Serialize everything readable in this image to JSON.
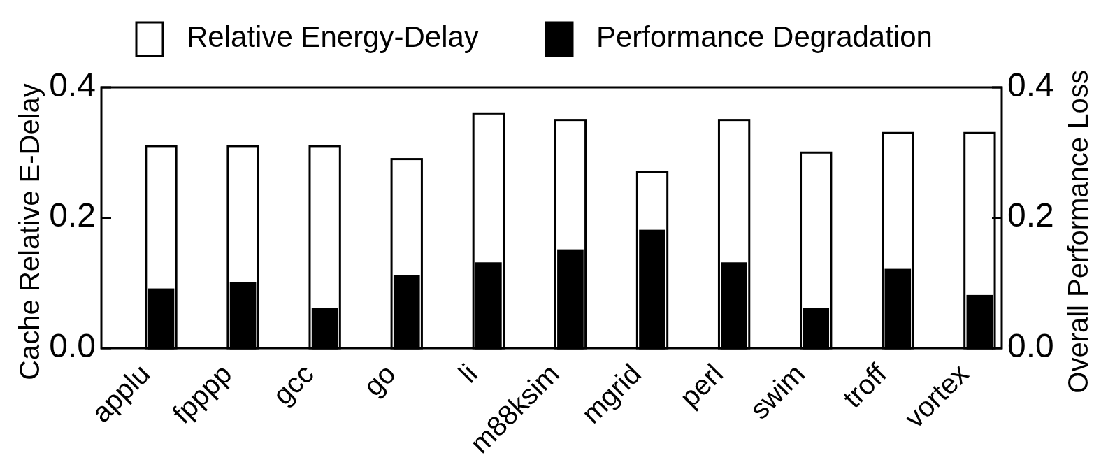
{
  "chart_data": {
    "type": "bar",
    "ylabel": "Cache Relative E-Delay",
    "y2label": "Overall Performance Loss",
    "categories": [
      "applu",
      "fpppp",
      "gcc",
      "go",
      "li",
      "m88ksim",
      "mgrid",
      "perl",
      "swim",
      "troff",
      "vortex"
    ],
    "series": [
      {
        "name": "Relative Energy-Delay",
        "color": "#ffffff",
        "values": [
          0.31,
          0.31,
          0.31,
          0.29,
          0.36,
          0.35,
          0.27,
          0.35,
          0.3,
          0.33,
          0.33
        ]
      },
      {
        "name": "Performance Degradation",
        "color": "#000000",
        "values": [
          0.09,
          0.1,
          0.06,
          0.11,
          0.13,
          0.15,
          0.18,
          0.13,
          0.06,
          0.12,
          0.08
        ]
      }
    ],
    "ylim": [
      0,
      0.4
    ],
    "yticks": [
      {
        "value": 0,
        "label": "0.0"
      },
      {
        "value": 0.2,
        "label": "0.2"
      },
      {
        "value": 0.4,
        "label": "0.4"
      }
    ],
    "y2lim": [
      0,
      0.4
    ],
    "y2ticks": [
      {
        "value": 0,
        "label": "0.0"
      },
      {
        "value": 0.2,
        "label": "0.2"
      },
      {
        "value": 0.4,
        "label": "0.4"
      }
    ],
    "legend": "top"
  }
}
